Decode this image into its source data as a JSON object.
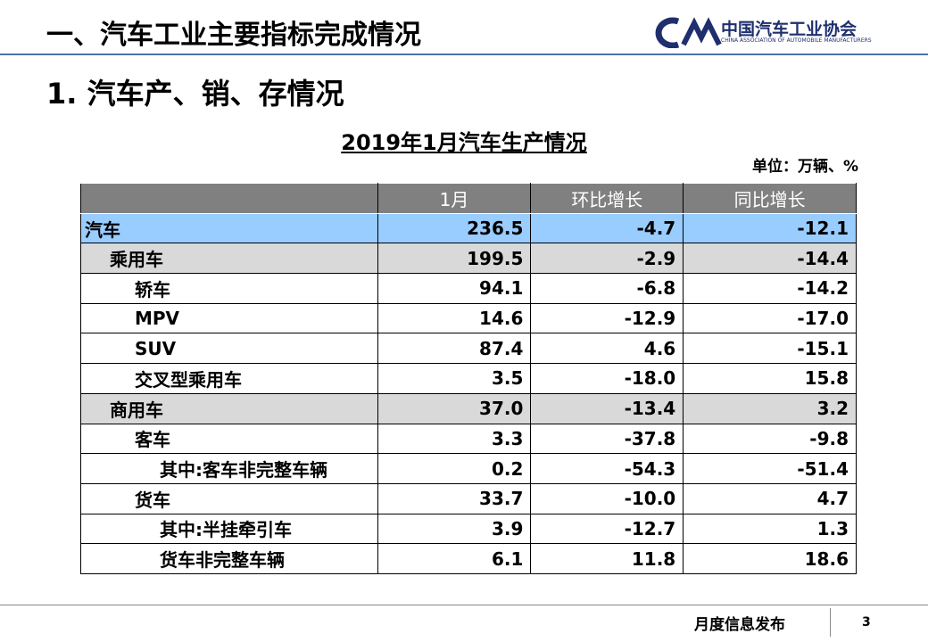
{
  "header": {
    "title": "一、汽车工业主要指标完成情况",
    "logo_cn": "中国汽车工业协会",
    "logo_en": "CHINA ASSOCIATION OF AUTOMOBILE MANUFACTURERS"
  },
  "section": "1. 汽车产、销、存情况",
  "table": {
    "title": "2019年1月汽车生产情况",
    "unit": "单位：万辆、%",
    "columns": [
      "1月",
      "环比增长",
      "同比增长"
    ],
    "rows": [
      [
        "汽车",
        "236.5",
        "-4.7",
        "-12.1"
      ],
      [
        "乘用车",
        "199.5",
        "-2.9",
        "-14.4"
      ],
      [
        "轿车",
        "94.1",
        "-6.8",
        "-14.2"
      ],
      [
        "MPV",
        "14.6",
        "-12.9",
        "-17.0"
      ],
      [
        "SUV",
        "87.4",
        "4.6",
        "-15.1"
      ],
      [
        "交叉型乘用车",
        "3.5",
        "-18.0",
        "15.8"
      ],
      [
        "商用车",
        "37.0",
        "-13.4",
        "3.2"
      ],
      [
        "客车",
        "3.3",
        "-37.8",
        "-9.8"
      ],
      [
        "其中:客车非完整车辆",
        "0.2",
        "-54.3",
        "-51.4"
      ],
      [
        "货车",
        "33.7",
        "-10.0",
        "4.7"
      ],
      [
        "其中:半挂牵引车",
        "3.9",
        "-12.7",
        "1.3"
      ],
      [
        "货车非完整车辆",
        "6.1",
        "11.8",
        "18.6"
      ]
    ]
  },
  "footer": {
    "label": "月度信息发布",
    "page": "3"
  }
}
